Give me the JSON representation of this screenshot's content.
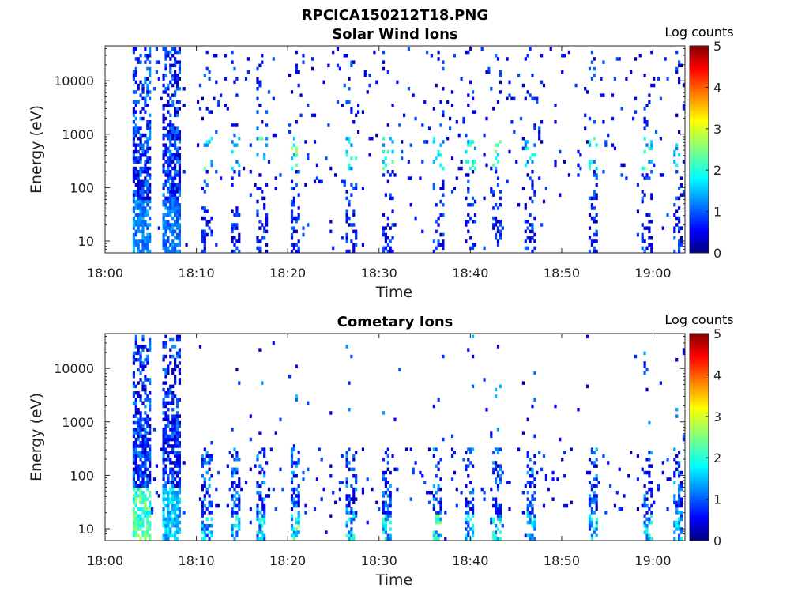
{
  "figure_title": "RPCICA150212T18.PNG",
  "chart_data": [
    {
      "type": "heatmap",
      "title": "Solar Wind Ions",
      "xlabel": "Time",
      "ylabel": "Energy (eV)",
      "x_ticks": [
        "18:00",
        "18:10",
        "18:20",
        "18:30",
        "18:40",
        "18:50",
        "19:00"
      ],
      "x_range_minutes": [
        0,
        63.5
      ],
      "y_ticks": [
        "10",
        "100",
        "1000",
        "10000"
      ],
      "y_scale": "log",
      "y_range": [
        6,
        45000
      ],
      "colorbar": {
        "title": "Log counts",
        "ticks": [
          "0",
          "1",
          "2",
          "3",
          "4",
          "5"
        ],
        "range": [
          0,
          5
        ],
        "colormap": "jet"
      },
      "activity": [
        {
          "t": 3.8,
          "band": "full",
          "level": 1.6
        },
        {
          "t": 7.2,
          "band": "full",
          "level": 1.5
        },
        {
          "t": 11.0,
          "band": "sparse",
          "level": 2.4
        },
        {
          "t": 14.2,
          "band": "sparse",
          "level": 2.0
        },
        {
          "t": 17.0,
          "band": "sparse",
          "level": 2.5
        },
        {
          "t": 20.7,
          "band": "sparse",
          "level": 2.8
        },
        {
          "t": 26.8,
          "band": "sparse",
          "level": 2.4
        },
        {
          "t": 30.8,
          "band": "sparse",
          "level": 2.6
        },
        {
          "t": 36.3,
          "band": "sparse",
          "level": 2.3
        },
        {
          "t": 39.8,
          "band": "sparse",
          "level": 2.4
        },
        {
          "t": 42.8,
          "band": "sparse",
          "level": 2.6
        },
        {
          "t": 46.5,
          "band": "sparse",
          "level": 2.2
        },
        {
          "t": 53.3,
          "band": "sparse",
          "level": 2.4
        },
        {
          "t": 59.3,
          "band": "sparse",
          "level": 2.3
        },
        {
          "t": 62.6,
          "band": "sparse",
          "level": 2.0
        }
      ]
    },
    {
      "type": "heatmap",
      "title": "Cometary Ions",
      "xlabel": "Time",
      "ylabel": "Energy (eV)",
      "x_ticks": [
        "18:00",
        "18:10",
        "18:20",
        "18:30",
        "18:40",
        "18:50",
        "19:00"
      ],
      "x_range_minutes": [
        0,
        63.5
      ],
      "y_ticks": [
        "10",
        "100",
        "1000",
        "10000"
      ],
      "y_scale": "log",
      "y_range": [
        6,
        45000
      ],
      "colorbar": {
        "title": "Log counts",
        "ticks": [
          "0",
          "1",
          "2",
          "3",
          "4",
          "5"
        ],
        "range": [
          0,
          5
        ],
        "colormap": "jet"
      },
      "activity": [
        {
          "t": 3.8,
          "band": "full",
          "level": 2.8
        },
        {
          "t": 7.2,
          "band": "full",
          "level": 2.0
        },
        {
          "t": 11.0,
          "band": "low",
          "level": 2.0
        },
        {
          "t": 14.2,
          "band": "low",
          "level": 2.2
        },
        {
          "t": 17.0,
          "band": "low",
          "level": 2.3
        },
        {
          "t": 20.7,
          "band": "low",
          "level": 2.5
        },
        {
          "t": 26.8,
          "band": "low",
          "level": 2.3
        },
        {
          "t": 30.8,
          "band": "low",
          "level": 2.4
        },
        {
          "t": 36.3,
          "band": "low",
          "level": 2.6
        },
        {
          "t": 39.8,
          "band": "low",
          "level": 2.1
        },
        {
          "t": 42.8,
          "band": "low",
          "level": 2.3
        },
        {
          "t": 46.5,
          "band": "low",
          "level": 2.0
        },
        {
          "t": 53.3,
          "band": "low",
          "level": 2.2
        },
        {
          "t": 59.3,
          "band": "low",
          "level": 2.1
        },
        {
          "t": 62.6,
          "band": "low",
          "level": 2.0
        }
      ]
    }
  ]
}
